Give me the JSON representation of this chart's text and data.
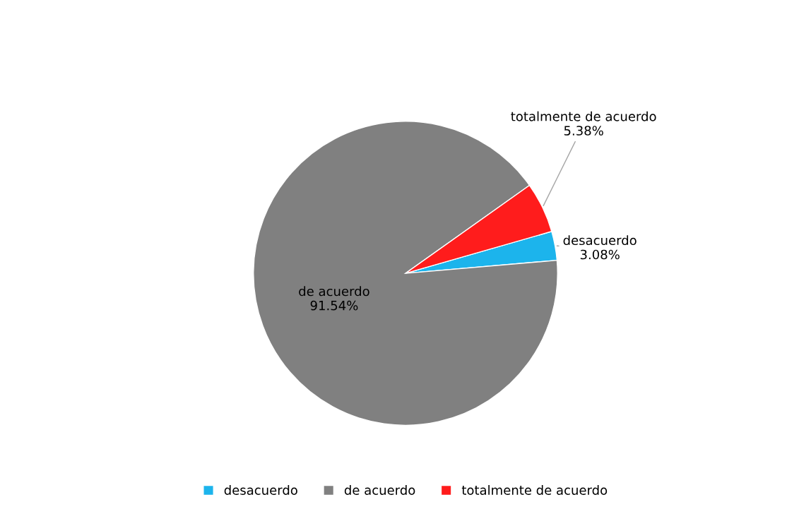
{
  "chart_data": {
    "type": "pie",
    "categories": [
      "desacuerdo",
      "de acuerdo",
      "totalmente de acuerdo"
    ],
    "values": [
      3.08,
      91.54,
      5.38
    ],
    "value_labels": [
      "3.08%",
      "91.54%",
      "5.38%"
    ],
    "colors": [
      "#1cb4ec",
      "#808080",
      "#ff1c1c"
    ],
    "legend": "bottom"
  }
}
